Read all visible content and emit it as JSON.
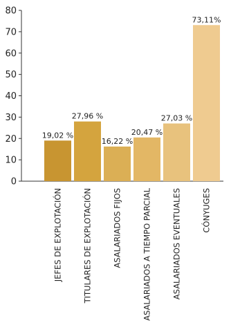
{
  "chart_data": {
    "type": "bar",
    "title": "",
    "xlabel": "",
    "ylabel": "",
    "ylim": [
      0,
      80
    ],
    "yticks": [
      0,
      10,
      20,
      30,
      40,
      50,
      60,
      70,
      80
    ],
    "grid": false,
    "categories": [
      "JEFES DE EXPLOTACIÓN",
      "TITULARES DE EXPLOTACIÓN",
      "ASALARIADOS FIJOS",
      "ASALARIADOS A TIEMPO PARCIAL",
      "ASALARIADOS EVENTUALES",
      "CÓNYUGES"
    ],
    "values": [
      19.02,
      27.96,
      16.22,
      20.47,
      27.03,
      73.11
    ],
    "value_labels": [
      "19,02 %",
      "27,96 %",
      "16,22 %",
      "20,47 %",
      "27,03 %",
      "73,11%"
    ],
    "colors": [
      "#C89531",
      "#D4A43E",
      "#DBAF55",
      "#E3B765",
      "#E8C27D",
      "#EFCB90"
    ],
    "axis_color": "#333333"
  }
}
